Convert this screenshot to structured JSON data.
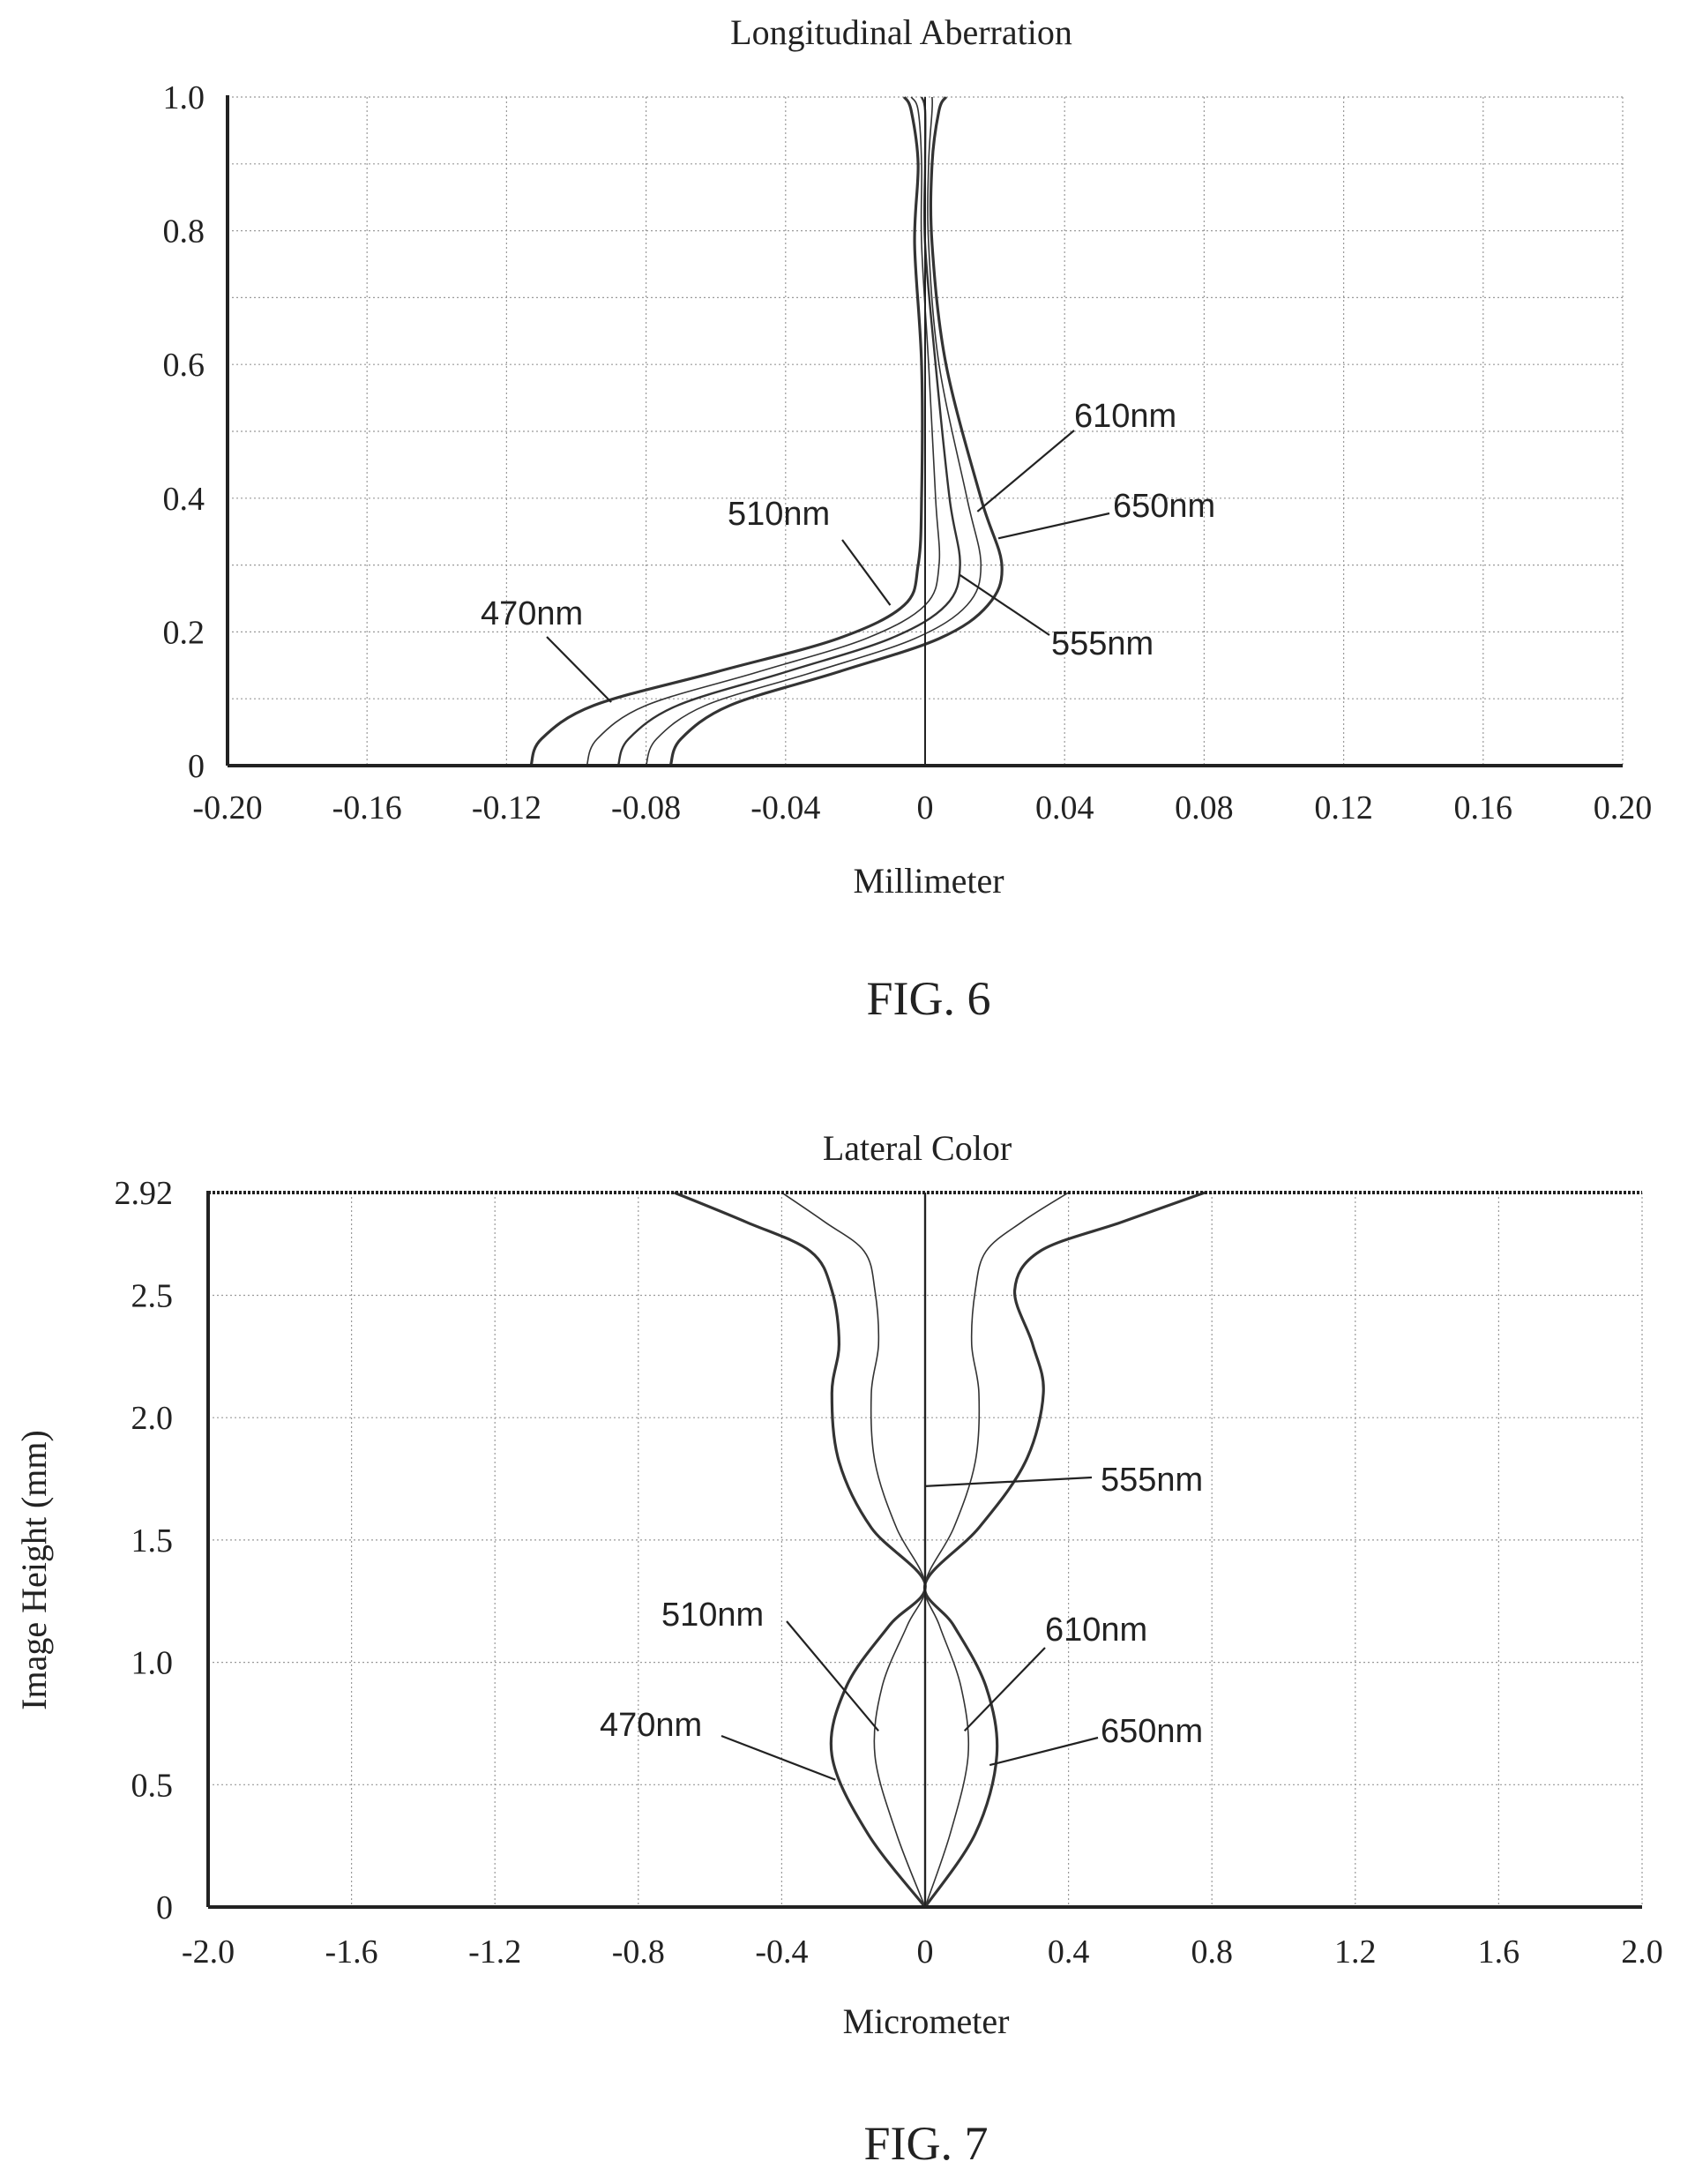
{
  "figures": [
    {
      "caption": "FIG. 6"
    },
    {
      "caption": "FIG. 7"
    }
  ],
  "chart_data": [
    {
      "type": "line",
      "title": "Longitudinal Aberration",
      "xlabel": "Millimeter",
      "ylabel": "",
      "xlim": [
        -0.2,
        0.2
      ],
      "ylim": [
        0,
        1.0
      ],
      "x_ticks": [
        "-0.20",
        "-0.16",
        "-0.12",
        "-0.08",
        "-0.04",
        "0",
        "0.04",
        "0.08",
        "0.12",
        "0.16",
        "0.20"
      ],
      "y_ticks": [
        "0",
        "0.2",
        "0.4",
        "0.6",
        "0.8",
        "1.0"
      ],
      "grid": true,
      "series": [
        {
          "name": "470nm",
          "points": [
            [
              -0.113,
              0
            ],
            [
              -0.11,
              0.04
            ],
            [
              -0.095,
              0.09
            ],
            [
              -0.06,
              0.14
            ],
            [
              -0.025,
              0.19
            ],
            [
              -0.006,
              0.24
            ],
            [
              -0.002,
              0.3
            ],
            [
              -0.001,
              0.4
            ],
            [
              -0.001,
              0.6
            ],
            [
              -0.003,
              0.78
            ],
            [
              -0.002,
              0.9
            ],
            [
              -0.004,
              0.98
            ],
            [
              -0.006,
              1.0
            ]
          ]
        },
        {
          "name": "510nm",
          "points": [
            [
              -0.097,
              0
            ],
            [
              -0.094,
              0.04
            ],
            [
              -0.08,
              0.09
            ],
            [
              -0.048,
              0.14
            ],
            [
              -0.017,
              0.19
            ],
            [
              0.0,
              0.24
            ],
            [
              0.004,
              0.3
            ],
            [
              0.003,
              0.4
            ],
            [
              0.001,
              0.6
            ],
            [
              -0.001,
              0.78
            ],
            [
              -0.001,
              0.9
            ],
            [
              -0.002,
              0.98
            ],
            [
              -0.004,
              1.0
            ]
          ]
        },
        {
          "name": "555nm",
          "points": [
            [
              -0.088,
              0
            ],
            [
              -0.085,
              0.04
            ],
            [
              -0.071,
              0.09
            ],
            [
              -0.04,
              0.14
            ],
            [
              -0.01,
              0.19
            ],
            [
              0.006,
              0.24
            ],
            [
              0.01,
              0.3
            ],
            [
              0.007,
              0.4
            ],
            [
              0.003,
              0.6
            ],
            [
              0.0,
              0.78
            ],
            [
              0.0,
              0.9
            ],
            [
              0.0,
              0.98
            ],
            [
              -0.001,
              1.0
            ]
          ]
        },
        {
          "name": "610nm",
          "points": [
            [
              -0.08,
              0
            ],
            [
              -0.077,
              0.04
            ],
            [
              -0.063,
              0.09
            ],
            [
              -0.032,
              0.14
            ],
            [
              -0.003,
              0.19
            ],
            [
              0.012,
              0.24
            ],
            [
              0.016,
              0.3
            ],
            [
              0.012,
              0.4
            ],
            [
              0.004,
              0.6
            ],
            [
              0.001,
              0.78
            ],
            [
              0.001,
              0.9
            ],
            [
              0.002,
              0.98
            ],
            [
              0.002,
              1.0
            ]
          ]
        },
        {
          "name": "650nm",
          "points": [
            [
              -0.073,
              0
            ],
            [
              -0.07,
              0.04
            ],
            [
              -0.056,
              0.09
            ],
            [
              -0.025,
              0.14
            ],
            [
              0.004,
              0.19
            ],
            [
              0.018,
              0.24
            ],
            [
              0.022,
              0.3
            ],
            [
              0.016,
              0.4
            ],
            [
              0.006,
              0.6
            ],
            [
              0.002,
              0.78
            ],
            [
              0.002,
              0.9
            ],
            [
              0.004,
              0.98
            ],
            [
              0.006,
              1.0
            ]
          ]
        }
      ],
      "annotations": [
        {
          "text": "470nm",
          "series": "470nm"
        },
        {
          "text": "510nm",
          "series": "510nm"
        },
        {
          "text": "555nm",
          "series": "555nm"
        },
        {
          "text": "610nm",
          "series": "610nm"
        },
        {
          "text": "650nm",
          "series": "650nm"
        }
      ]
    },
    {
      "type": "line",
      "title": "Lateral Color",
      "xlabel": "Micrometer",
      "ylabel": "Image Height (mm)",
      "xlim": [
        -2.0,
        2.0
      ],
      "ylim": [
        0,
        2.92
      ],
      "x_ticks": [
        "-2.0",
        "-1.6",
        "-1.2",
        "-0.8",
        "-0.4",
        "0",
        "0.4",
        "0.8",
        "1.2",
        "1.6",
        "2.0"
      ],
      "y_ticks": [
        "0",
        "0.5",
        "1.0",
        "1.5",
        "2.0",
        "2.5",
        "2.92"
      ],
      "grid": true,
      "series": [
        {
          "name": "470nm",
          "points": [
            [
              0,
              0
            ],
            [
              -0.16,
              0.3
            ],
            [
              -0.26,
              0.62
            ],
            [
              -0.22,
              0.9
            ],
            [
              -0.1,
              1.15
            ],
            [
              0.0,
              1.32
            ],
            [
              -0.15,
              1.55
            ],
            [
              -0.24,
              1.82
            ],
            [
              -0.26,
              2.1
            ],
            [
              -0.24,
              2.3
            ],
            [
              -0.26,
              2.52
            ],
            [
              -0.32,
              2.68
            ],
            [
              -0.5,
              2.8
            ],
            [
              -0.7,
              2.92
            ]
          ]
        },
        {
          "name": "510nm",
          "points": [
            [
              0,
              0
            ],
            [
              -0.08,
              0.3
            ],
            [
              -0.14,
              0.62
            ],
            [
              -0.12,
              0.9
            ],
            [
              -0.05,
              1.15
            ],
            [
              0.0,
              1.32
            ],
            [
              -0.08,
              1.55
            ],
            [
              -0.14,
              1.82
            ],
            [
              -0.15,
              2.1
            ],
            [
              -0.13,
              2.3
            ],
            [
              -0.14,
              2.52
            ],
            [
              -0.17,
              2.68
            ],
            [
              -0.28,
              2.8
            ],
            [
              -0.4,
              2.92
            ]
          ]
        },
        {
          "name": "555nm",
          "points": [
            [
              0,
              0
            ],
            [
              0,
              0.5
            ],
            [
              0,
              1.0
            ],
            [
              0,
              1.5
            ],
            [
              0,
              2.0
            ],
            [
              0,
              2.5
            ],
            [
              0,
              2.92
            ]
          ]
        },
        {
          "name": "610nm",
          "points": [
            [
              0,
              0
            ],
            [
              0.07,
              0.3
            ],
            [
              0.12,
              0.62
            ],
            [
              0.1,
              0.9
            ],
            [
              0.04,
              1.15
            ],
            [
              0.0,
              1.32
            ],
            [
              0.08,
              1.55
            ],
            [
              0.14,
              1.82
            ],
            [
              0.15,
              2.1
            ],
            [
              0.13,
              2.3
            ],
            [
              0.14,
              2.52
            ],
            [
              0.17,
              2.68
            ],
            [
              0.27,
              2.8
            ],
            [
              0.4,
              2.92
            ]
          ]
        },
        {
          "name": "650nm",
          "points": [
            [
              0,
              0
            ],
            [
              0.14,
              0.3
            ],
            [
              0.2,
              0.62
            ],
            [
              0.17,
              0.9
            ],
            [
              0.08,
              1.15
            ],
            [
              0.0,
              1.32
            ],
            [
              0.15,
              1.55
            ],
            [
              0.28,
              1.82
            ],
            [
              0.33,
              2.1
            ],
            [
              0.3,
              2.3
            ],
            [
              0.25,
              2.52
            ],
            [
              0.32,
              2.68
            ],
            [
              0.55,
              2.8
            ],
            [
              0.78,
              2.92
            ]
          ]
        }
      ],
      "annotations": [
        {
          "text": "470nm",
          "series": "470nm"
        },
        {
          "text": "510nm",
          "series": "510nm"
        },
        {
          "text": "555nm",
          "series": "555nm"
        },
        {
          "text": "610nm",
          "series": "610nm"
        },
        {
          "text": "650nm",
          "series": "650nm"
        }
      ]
    }
  ]
}
